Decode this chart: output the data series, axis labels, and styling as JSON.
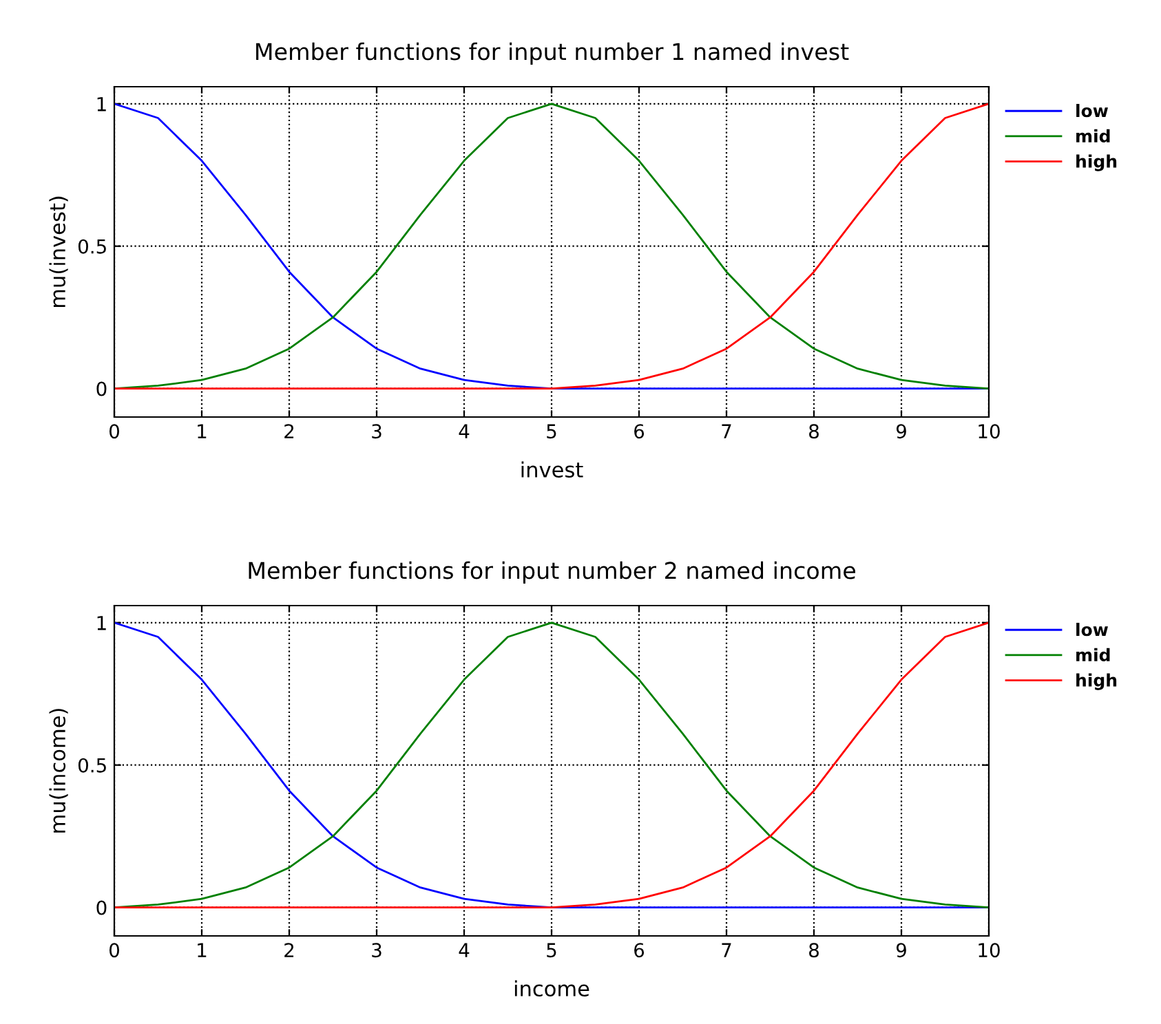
{
  "chart_data": [
    {
      "type": "line",
      "title": "Member functions for input number 1 named invest",
      "xlabel": "invest",
      "ylabel": "mu(invest)",
      "x": [
        0,
        0.5,
        1,
        1.5,
        2,
        2.5,
        3,
        3.5,
        4,
        4.5,
        5,
        5.5,
        6,
        6.5,
        7,
        7.5,
        8,
        8.5,
        9,
        9.5,
        10
      ],
      "series": [
        {
          "name": "low",
          "color": "#0000ff",
          "values": [
            1,
            0.95,
            0.8,
            0.61,
            0.41,
            0.25,
            0.14,
            0.07,
            0.03,
            0.01,
            0,
            0,
            0,
            0,
            0,
            0,
            0,
            0,
            0,
            0,
            0
          ]
        },
        {
          "name": "mid",
          "color": "#008000",
          "values": [
            0,
            0.01,
            0.03,
            0.07,
            0.14,
            0.25,
            0.41,
            0.61,
            0.8,
            0.95,
            1,
            0.95,
            0.8,
            0.61,
            0.41,
            0.25,
            0.14,
            0.07,
            0.03,
            0.01,
            0
          ]
        },
        {
          "name": "high",
          "color": "#ff0000",
          "values": [
            0,
            0,
            0,
            0,
            0,
            0,
            0,
            0,
            0,
            0,
            0,
            0.01,
            0.03,
            0.07,
            0.14,
            0.25,
            0.41,
            0.61,
            0.8,
            0.95,
            1
          ]
        }
      ],
      "xlim": [
        0,
        10
      ],
      "ylim": [
        -0.1,
        1.06
      ],
      "xticks": [
        0,
        1,
        2,
        3,
        4,
        5,
        6,
        7,
        8,
        9,
        10
      ],
      "yticks": [
        0,
        0.5,
        1
      ],
      "grid": true,
      "legend": "top right",
      "marker": "none",
      "line_style": "solid"
    },
    {
      "type": "line",
      "title": "Member functions for input number 2 named income",
      "xlabel": "income",
      "ylabel": "mu(income)",
      "x": [
        0,
        0.5,
        1,
        1.5,
        2,
        2.5,
        3,
        3.5,
        4,
        4.5,
        5,
        5.5,
        6,
        6.5,
        7,
        7.5,
        8,
        8.5,
        9,
        9.5,
        10
      ],
      "series": [
        {
          "name": "low",
          "color": "#0000ff",
          "values": [
            1,
            0.95,
            0.8,
            0.61,
            0.41,
            0.25,
            0.14,
            0.07,
            0.03,
            0.01,
            0,
            0,
            0,
            0,
            0,
            0,
            0,
            0,
            0,
            0,
            0
          ]
        },
        {
          "name": "mid",
          "color": "#008000",
          "values": [
            0,
            0.01,
            0.03,
            0.07,
            0.14,
            0.25,
            0.41,
            0.61,
            0.8,
            0.95,
            1,
            0.95,
            0.8,
            0.61,
            0.41,
            0.25,
            0.14,
            0.07,
            0.03,
            0.01,
            0
          ]
        },
        {
          "name": "high",
          "color": "#ff0000",
          "values": [
            0,
            0,
            0,
            0,
            0,
            0,
            0,
            0,
            0,
            0,
            0,
            0.01,
            0.03,
            0.07,
            0.14,
            0.25,
            0.41,
            0.61,
            0.8,
            0.95,
            1
          ]
        }
      ],
      "xlim": [
        0,
        10
      ],
      "ylim": [
        -0.1,
        1.06
      ],
      "xticks": [
        0,
        1,
        2,
        3,
        4,
        5,
        6,
        7,
        8,
        9,
        10
      ],
      "yticks": [
        0,
        0.5,
        1
      ],
      "grid": true,
      "legend": "top right",
      "marker": "none",
      "line_style": "solid"
    }
  ]
}
